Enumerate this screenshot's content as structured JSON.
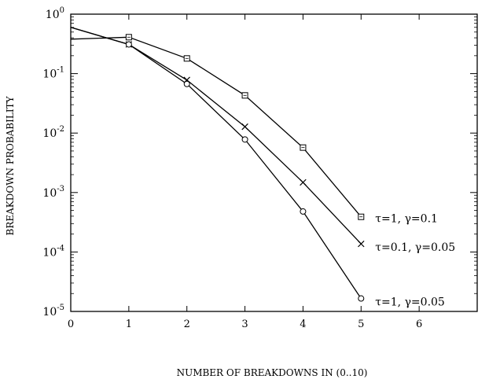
{
  "chart_data": {
    "type": "line",
    "xlabel": "NUMBER OF BREAKDOWNS IN (0..10)",
    "ylabel": "BREAKDOWN PROBABILITY",
    "xlim": [
      0,
      7
    ],
    "ylim": [
      1e-05,
      1
    ],
    "y_scale": "log",
    "grid": false,
    "legend": "inline labels at line ends",
    "x_ticks": [
      {
        "value": 0,
        "label": "0"
      },
      {
        "value": 1,
        "label": "1"
      },
      {
        "value": 2,
        "label": "2"
      },
      {
        "value": 3,
        "label": "3"
      },
      {
        "value": 4,
        "label": "4"
      },
      {
        "value": 5,
        "label": "5"
      },
      {
        "value": 6,
        "label": "6"
      }
    ],
    "y_ticks": [
      {
        "exp": 0,
        "base": "10",
        "sup": "0"
      },
      {
        "exp": -1,
        "base": "10",
        "sup": "-1"
      },
      {
        "exp": -2,
        "base": "10",
        "sup": "-2"
      },
      {
        "exp": -3,
        "base": "10",
        "sup": "-3"
      },
      {
        "exp": -4,
        "base": "10",
        "sup": "-4"
      },
      {
        "exp": -5,
        "base": "10",
        "sup": "-5"
      }
    ],
    "series": [
      {
        "name": "τ=1, γ=0.1",
        "marker": "square",
        "x": [
          0,
          1,
          2,
          3,
          4,
          5
        ],
        "y": [
          0.38,
          0.41,
          0.18,
          0.043,
          0.0057,
          0.00039
        ]
      },
      {
        "name": "τ=0.1, γ=0.05",
        "marker": "x",
        "x": [
          0,
          1,
          2,
          3,
          4,
          5
        ],
        "y": [
          0.6,
          0.31,
          0.078,
          0.0128,
          0.00148,
          0.000137
        ]
      },
      {
        "name": "τ=1, γ=0.05",
        "marker": "circle",
        "x": [
          0,
          1,
          2,
          3,
          4,
          5
        ],
        "y": [
          0.6,
          0.31,
          0.067,
          0.0078,
          0.00048,
          1.65e-05
        ]
      }
    ]
  }
}
